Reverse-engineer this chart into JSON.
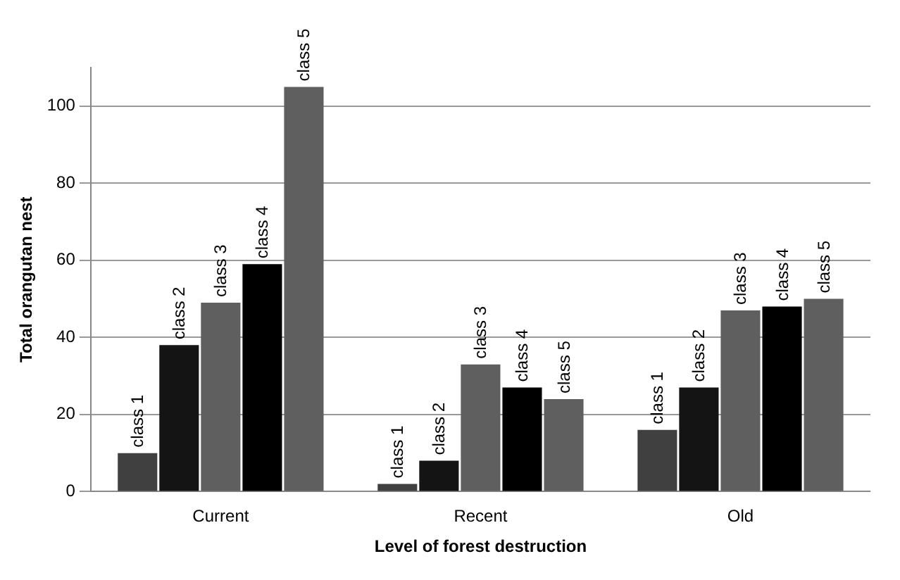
{
  "chart_data": {
    "type": "bar",
    "xlabel": "Level of forest destruction",
    "ylabel": "Total orangutan nest",
    "categories": [
      "Current",
      "Recent",
      "Old"
    ],
    "series": [
      {
        "name": "class 1",
        "color": "#404040",
        "values": [
          10,
          2,
          16
        ]
      },
      {
        "name": "class 2",
        "color": "#141414",
        "values": [
          38,
          8,
          27
        ]
      },
      {
        "name": "class 3",
        "color": "#5f5f5f",
        "values": [
          49,
          33,
          47
        ]
      },
      {
        "name": "class 4",
        "color": "#000000",
        "values": [
          59,
          27,
          48
        ]
      },
      {
        "name": "class 5",
        "color": "#5f5f5f",
        "values": [
          105,
          24,
          50
        ]
      }
    ],
    "ylim": [
      0,
      110
    ],
    "yticks": [
      0,
      20,
      40,
      60,
      80,
      100
    ],
    "grid": "y",
    "legend": false
  }
}
